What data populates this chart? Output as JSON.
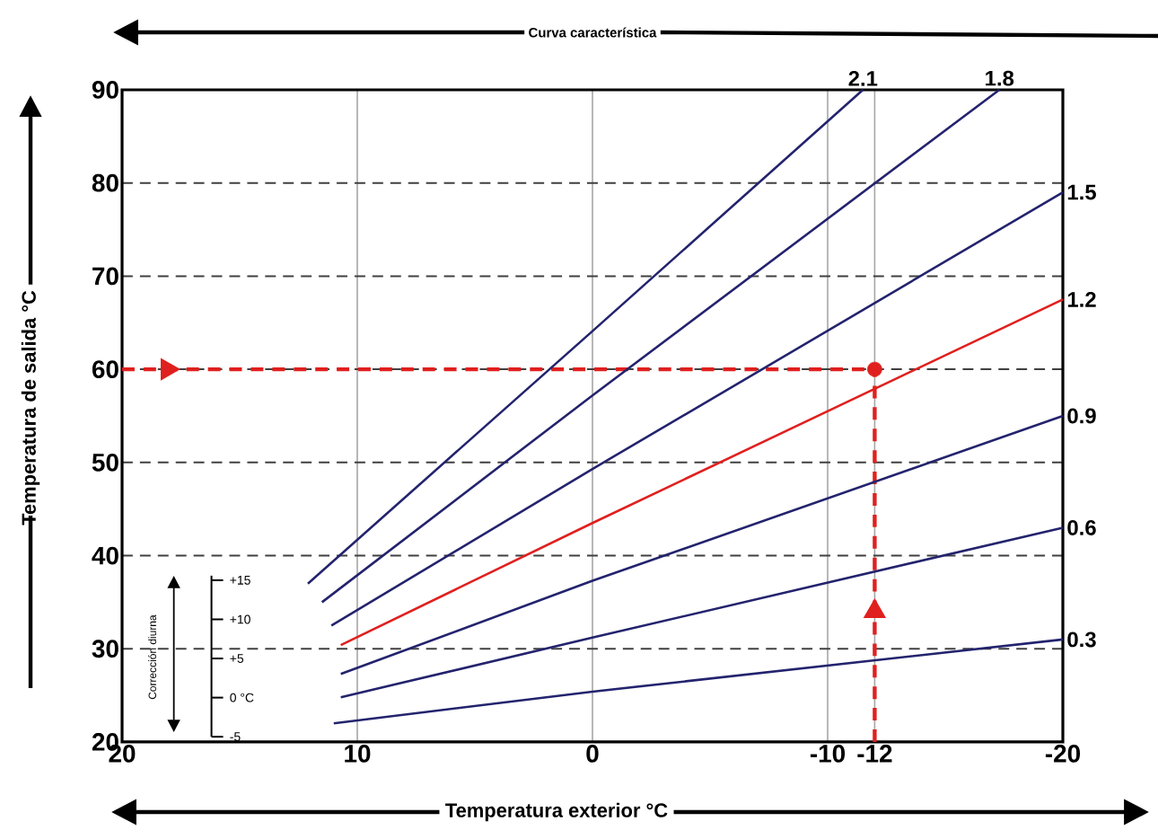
{
  "chart_data": {
    "type": "line",
    "title": "Curva característica",
    "xlabel": "Temperatura exterior  °C",
    "ylabel": "Temperatura de salida  °C",
    "xlim": [
      20,
      -20
    ],
    "xticks": [
      20,
      10,
      0,
      -10,
      -12,
      -20
    ],
    "ylim": [
      20,
      90
    ],
    "yticks": [
      20,
      30,
      40,
      50,
      60,
      70,
      80,
      90
    ],
    "grid": true,
    "series": [
      {
        "name": "2.1",
        "color": "#23236e",
        "x": [
          12.1,
          0,
          -11.5
        ],
        "values": [
          37,
          64.1,
          90
        ]
      },
      {
        "name": "1.8",
        "color": "#23236e",
        "x": [
          11.5,
          0,
          -17.3
        ],
        "values": [
          35,
          57.2,
          90
        ]
      },
      {
        "name": "1.5",
        "color": "#23236e",
        "x": [
          11.1,
          0,
          -20
        ],
        "values": [
          32.5,
          49.3,
          79
        ]
      },
      {
        "name": "1.2",
        "color": "#e0201e",
        "x": [
          10.7,
          0,
          -20
        ],
        "values": [
          30.4,
          43.5,
          67.5
        ]
      },
      {
        "name": "0.9",
        "color": "#23236e",
        "x": [
          10.7,
          0,
          -20
        ],
        "values": [
          27.3,
          37.3,
          55
        ]
      },
      {
        "name": "0.6",
        "color": "#23236e",
        "x": [
          10.7,
          0,
          -20
        ],
        "values": [
          24.8,
          31.2,
          43
        ]
      },
      {
        "name": "0.3",
        "color": "#23236e",
        "x": [
          11,
          0,
          -20
        ],
        "values": [
          22,
          25.4,
          31
        ]
      },
      {
        "type": "scatter",
        "color": "#e0201e",
        "x": [
          -12
        ],
        "values": [
          60
        ]
      }
    ],
    "ref_lines": [
      {
        "axis": "y",
        "value": 60,
        "color": "#e0201e",
        "line_style": "dashed"
      },
      {
        "axis": "x",
        "value": -12,
        "color": "#e0201e",
        "line_style": "dashed"
      }
    ],
    "annotations": [
      "Corrección diurna",
      "+15",
      "+10",
      "+5",
      "0 °C",
      "-5"
    ]
  }
}
